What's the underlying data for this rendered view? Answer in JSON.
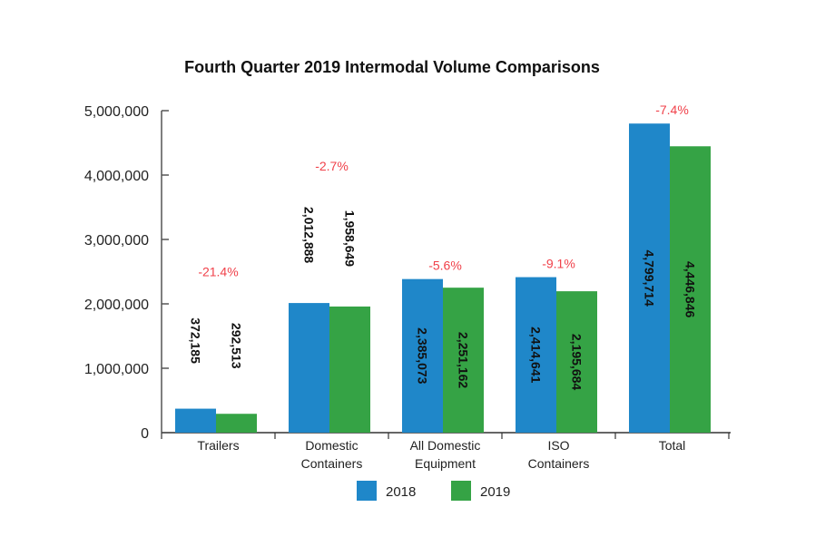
{
  "chart_data": {
    "type": "bar",
    "title": "Fourth Quarter 2019 Intermodal Volume Comparisons",
    "categories": [
      [
        "Trailers"
      ],
      [
        "Domestic",
        "Containers"
      ],
      [
        "All Domestic",
        "Equipment"
      ],
      [
        "ISO",
        "Containers"
      ],
      [
        "Total"
      ]
    ],
    "series": [
      {
        "name": "2018",
        "color": "#1f87c9",
        "values": [
          372185,
          2012888,
          2385073,
          2414641,
          4799714
        ],
        "labels": [
          "372,185",
          "2,012,888",
          "2,385,073",
          "2,414,641",
          "4,799,714"
        ]
      },
      {
        "name": "2019",
        "color": "#35a345",
        "values": [
          292513,
          1958649,
          2251162,
          2195684,
          4446846
        ],
        "labels": [
          "292,513",
          "1,958,649",
          "2,251,162",
          "2,195,684",
          "4,446,846"
        ]
      }
    ],
    "changes": [
      "-21.4%",
      "-2.7%",
      "-5.6%",
      "-9.1%",
      "-7.4%"
    ],
    "change_color": "#f0414a",
    "ylim": [
      0,
      5000000
    ],
    "yticks": [
      0,
      1000000,
      2000000,
      3000000,
      4000000,
      5000000
    ],
    "ytick_labels": [
      "0",
      "1,000,000",
      "2,000,000",
      "3,000,000",
      "4,000,000",
      "5,000,000"
    ],
    "legend": "bottom",
    "grid": false
  }
}
